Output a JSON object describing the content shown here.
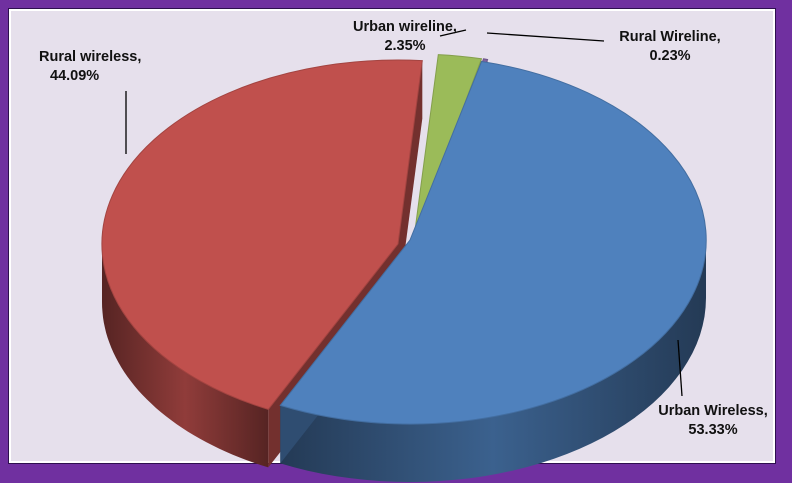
{
  "chart_data": {
    "type": "pie",
    "slices": [
      {
        "category": "Urban Wireless",
        "value": 53.33,
        "color": "#4f81bd"
      },
      {
        "category": "Rural wireless",
        "value": 44.09,
        "color": "#c0504d"
      },
      {
        "category": "Urban wireline",
        "value": 2.35,
        "color": "#9bbb59"
      },
      {
        "category": "Rural Wireline",
        "value": 0.23,
        "color": "#8064a2"
      }
    ],
    "labels": [
      {
        "line1": "Rural wireless,",
        "line2": "44.09%"
      },
      {
        "line1": "Urban wireline,",
        "line2": "2.35%"
      },
      {
        "line1": "Rural Wireline,",
        "line2": "0.23%"
      },
      {
        "line1": "Urban Wireless,",
        "line2": "53.33%"
      }
    ],
    "style": "3d-exploded",
    "legend": "none"
  }
}
